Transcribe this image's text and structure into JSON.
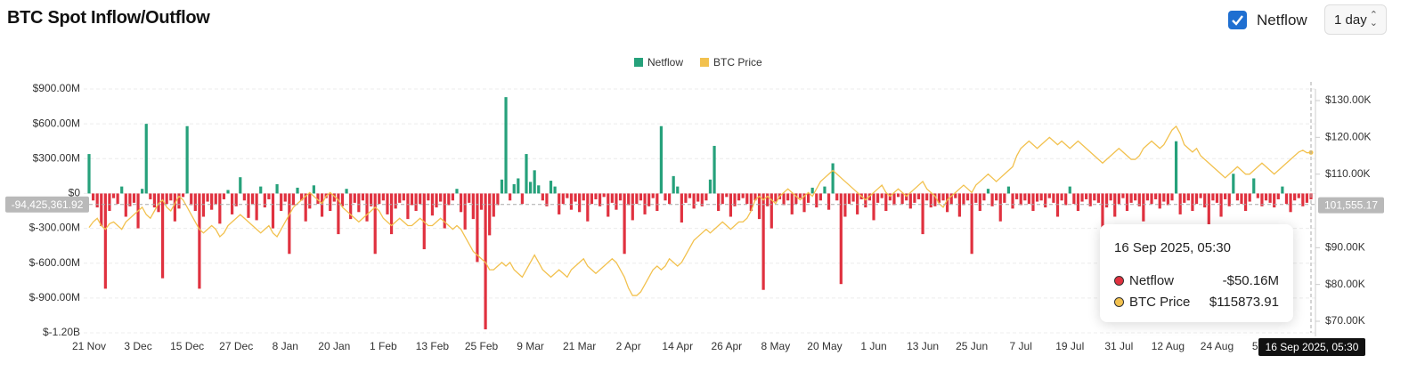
{
  "chart_data": {
    "type": "bar-line",
    "title": "BTC Spot Inflow/Outflow",
    "categories": [
      "21 Nov",
      null,
      null,
      null,
      null,
      null,
      null,
      null,
      null,
      null,
      null,
      null,
      "3 Dec",
      null,
      null,
      null,
      null,
      null,
      null,
      null,
      null,
      null,
      null,
      null,
      "15 Dec",
      null,
      null,
      null,
      null,
      null,
      null,
      null,
      null,
      null,
      null,
      null,
      "27 Dec",
      null,
      null,
      null,
      null,
      null,
      null,
      null,
      null,
      null,
      null,
      null,
      "8 Jan",
      null,
      null,
      null,
      null,
      null,
      null,
      null,
      null,
      null,
      null,
      null,
      "20 Jan",
      null,
      null,
      null,
      null,
      null,
      null,
      null,
      null,
      null,
      null,
      null,
      "1 Feb",
      null,
      null,
      null,
      null,
      null,
      null,
      null,
      null,
      null,
      null,
      null,
      "13 Feb",
      null,
      null,
      null,
      null,
      null,
      null,
      null,
      null,
      null,
      null,
      null,
      "25 Feb",
      null,
      null,
      null,
      null,
      null,
      null,
      null,
      null,
      null,
      null,
      null,
      "9 Mar",
      null,
      null,
      null,
      null,
      null,
      null,
      null,
      null,
      null,
      null,
      null,
      "21 Mar",
      null,
      null,
      null,
      null,
      null,
      null,
      null,
      null,
      null,
      null,
      null,
      "2 Apr",
      null,
      null,
      null,
      null,
      null,
      null,
      null,
      null,
      null,
      null,
      null,
      "14 Apr",
      null,
      null,
      null,
      null,
      null,
      null,
      null,
      null,
      null,
      null,
      null,
      "26 Apr",
      null,
      null,
      null,
      null,
      null,
      null,
      null,
      null,
      null,
      null,
      null,
      "8 May",
      null,
      null,
      null,
      null,
      null,
      null,
      null,
      null,
      null,
      null,
      null,
      "20 May",
      null,
      null,
      null,
      null,
      null,
      null,
      null,
      null,
      null,
      null,
      null,
      "1 Jun",
      null,
      null,
      null,
      null,
      null,
      null,
      null,
      null,
      null,
      null,
      null,
      "13 Jun",
      null,
      null,
      null,
      null,
      null,
      null,
      null,
      null,
      null,
      null,
      null,
      "25 Jun",
      null,
      null,
      null,
      null,
      null,
      null,
      null,
      null,
      null,
      null,
      null,
      "7 Jul",
      null,
      null,
      null,
      null,
      null,
      null,
      null,
      null,
      null,
      null,
      null,
      "19 Jul",
      null,
      null,
      null,
      null,
      null,
      null,
      null,
      null,
      null,
      null,
      null,
      "31 Jul",
      null,
      null,
      null,
      null,
      null,
      null,
      null,
      null,
      null,
      null,
      null,
      "12 Aug",
      null,
      null,
      null,
      null,
      null,
      null,
      null,
      null,
      null,
      null,
      null,
      "24 Aug",
      null,
      null,
      null,
      null,
      null,
      null,
      null,
      null,
      null,
      null,
      null,
      "5 Sep",
      null,
      null,
      null,
      null,
      null,
      null,
      null,
      null,
      null,
      null,
      null
    ],
    "series": [
      {
        "name": "Netflow",
        "color": "#26a17b",
        "negative_color": "#e0313f",
        "values": [
          340,
          -60,
          -120,
          -280,
          -820,
          -150,
          -40,
          -90,
          60,
          -200,
          -110,
          -80,
          -300,
          40,
          600,
          -50,
          -120,
          -160,
          -730,
          -90,
          -60,
          -240,
          -130,
          -30,
          580,
          -100,
          -150,
          -820,
          -200,
          -70,
          -140,
          -90,
          -260,
          -50,
          30,
          -180,
          -110,
          140,
          -60,
          -210,
          -90,
          -230,
          60,
          -120,
          -50,
          -300,
          80,
          -150,
          -70,
          -520,
          -100,
          50,
          -60,
          -240,
          -130,
          70,
          -90,
          -200,
          -40,
          -150,
          -70,
          -350,
          -110,
          40,
          -220,
          -80,
          -160,
          -60,
          -240,
          -110,
          -520,
          -90,
          -60,
          -180,
          -350,
          -130,
          -80,
          -60,
          -220,
          -100,
          -150,
          -90,
          -480,
          -60,
          -190,
          -120,
          -70,
          -300,
          -100,
          -60,
          40,
          -160,
          -310,
          -80,
          -220,
          -590,
          -140,
          -1170,
          -360,
          -200,
          -100,
          120,
          830,
          -60,
          80,
          130,
          -90,
          340,
          100,
          200,
          70,
          -60,
          -110,
          110,
          60,
          -180,
          -90,
          -40,
          -140,
          -70,
          -160,
          -60,
          -240,
          -90,
          -50,
          -110,
          -30,
          -200,
          -80,
          -140,
          -60,
          -520,
          -100,
          -230,
          -90,
          -60,
          -180,
          -110,
          -40,
          -150,
          580,
          -60,
          -90,
          150,
          60,
          -250,
          -80,
          -40,
          -130,
          -70,
          -110,
          -60,
          120,
          410,
          -150,
          -90,
          -30,
          -200,
          -110,
          -60,
          -40,
          -90,
          -150,
          -60,
          -220,
          -830,
          -110,
          -300,
          -70,
          -50,
          -100,
          -60,
          -180,
          -90,
          -40,
          -160,
          -80,
          50,
          -120,
          -60,
          60,
          -140,
          260,
          -60,
          -780,
          -200,
          -90,
          -70,
          -180,
          -50,
          -120,
          -60,
          -230,
          -80,
          -40,
          -150,
          -60,
          -100,
          -30,
          -90,
          -60,
          -130,
          -80,
          -50,
          -350,
          -60,
          -120,
          -110,
          -80,
          -60,
          -160,
          -90,
          -40,
          -200,
          -100,
          -60,
          -520,
          -80,
          -150,
          -60,
          40,
          -110,
          -60,
          -240,
          -80,
          60,
          -130,
          -50,
          -100,
          -60,
          -90,
          -150,
          -70,
          -60,
          -120,
          -40,
          -80,
          -200,
          -60,
          -100,
          60,
          -90,
          -150,
          -70,
          -50,
          -110,
          -60,
          -80,
          -830,
          -120,
          -60,
          -200,
          -90,
          -40,
          -150,
          -80,
          -60,
          -110,
          -240,
          -60,
          -90,
          -50,
          -130,
          -70,
          -100,
          -60,
          450,
          -180,
          -80,
          -60,
          -150,
          -90,
          -40,
          -120,
          -300,
          -60,
          -80,
          -200,
          -50,
          -110,
          170,
          -60,
          -90,
          -150,
          -70,
          130,
          -40,
          -110,
          -60,
          -80,
          -120,
          -50,
          60,
          -90,
          -160,
          -60,
          -40,
          -110,
          -80,
          -50.16
        ]
      },
      {
        "name": "BTC Price",
        "color": "#f2c14e",
        "axis": "y2",
        "values": [
          95.5,
          97,
          98,
          96,
          95,
          96.5,
          97,
          96,
          95,
          97,
          98,
          99,
          100,
          101,
          99,
          98,
          100,
          102,
          103,
          101,
          100,
          102,
          104,
          103,
          101,
          99,
          97,
          95,
          94,
          95,
          96,
          95,
          93,
          94,
          96,
          97,
          98,
          99,
          98,
          97,
          96,
          95,
          94,
          95,
          96,
          94,
          93,
          95,
          97,
          99,
          101,
          102,
          103,
          104,
          105,
          104,
          103,
          102,
          104,
          105,
          104,
          103,
          101,
          100,
          99,
          98,
          97,
          98,
          99,
          100,
          101,
          100,
          98,
          97,
          96,
          97,
          98,
          97,
          96,
          96,
          97,
          98,
          97,
          96,
          96,
          97,
          98,
          97,
          96,
          95,
          96,
          95,
          93,
          91,
          89,
          88,
          87,
          86,
          84,
          84,
          85,
          86,
          85,
          86,
          84,
          83,
          82,
          84,
          86,
          88,
          86,
          84,
          83,
          82,
          83,
          84,
          83,
          82,
          84,
          85,
          86,
          87,
          85,
          84,
          83,
          84,
          85,
          86,
          87,
          86,
          84,
          82,
          79,
          77,
          77,
          78,
          80,
          82,
          84,
          85,
          84,
          85,
          87,
          86,
          85,
          86,
          88,
          90,
          92,
          93,
          94,
          95,
          94,
          95,
          96,
          97,
          96,
          95,
          96,
          97,
          97,
          98,
          100,
          103,
          104,
          103,
          104,
          103,
          102,
          104,
          105,
          106,
          105,
          104,
          103,
          104,
          105,
          104,
          106,
          108,
          109,
          110,
          111,
          110,
          109,
          108,
          107,
          106,
          105,
          104,
          103,
          104,
          105,
          106,
          107,
          105,
          104,
          105,
          106,
          105,
          104,
          105,
          106,
          107,
          108,
          106,
          105,
          104,
          102,
          101,
          103,
          104,
          105,
          106,
          107,
          106,
          105,
          107,
          108,
          109,
          110,
          109,
          108,
          109,
          110,
          111,
          112,
          115,
          117,
          118,
          119,
          118,
          117,
          118,
          119,
          120,
          119,
          118,
          119,
          118,
          117,
          118,
          119,
          118,
          117,
          116,
          115,
          114,
          113,
          114,
          115,
          116,
          117,
          116,
          115,
          114,
          114,
          115,
          117,
          118,
          119,
          118,
          117,
          118,
          120,
          122,
          123,
          121,
          118,
          117,
          116,
          117,
          115,
          114,
          113,
          112,
          111,
          110,
          109,
          110,
          111,
          112,
          111,
          110,
          110,
          111,
          112,
          113,
          112,
          111,
          110,
          111,
          112,
          113,
          114,
          115,
          116,
          116.5,
          115.8,
          115.87391
        ]
      }
    ],
    "ylim": [
      -1200,
      900
    ],
    "yticks": [
      {
        "value": 900,
        "label": "$900.00M"
      },
      {
        "value": 600,
        "label": "$600.00M"
      },
      {
        "value": 300,
        "label": "$300.00M"
      },
      {
        "value": 0,
        "label": "$0"
      },
      {
        "value": -300,
        "label": "$-300.00M"
      },
      {
        "value": -600,
        "label": "$-600.00M"
      },
      {
        "value": -900,
        "label": "$-900.00M"
      },
      {
        "value": -1200,
        "label": "$-1.20B"
      }
    ],
    "y2lim": [
      66.85,
      133.15
    ],
    "y2ticks": [
      {
        "value": 70,
        "label": "$70.00K"
      },
      {
        "value": 80,
        "label": "$80.00K"
      },
      {
        "value": 90,
        "label": "$90.00K"
      },
      {
        "value": 110,
        "label": "$110.00K"
      },
      {
        "value": 120,
        "label": "$120.00K"
      },
      {
        "value": 130,
        "label": "$130.00K"
      }
    ],
    "grid": true,
    "legend": "top",
    "crosshair": {
      "y": {
        "value": -94.42536192,
        "label": "-94,425,361.92"
      },
      "y2": {
        "value": 101.55517,
        "label": "101,555.17"
      }
    },
    "tooltip": {
      "title": "16 Sep 2025, 05:30",
      "labels": [
        "-$50.16M",
        "$115873.91"
      ]
    }
  },
  "controls": {
    "toggle_label": "Netflow",
    "interval": "1 day"
  }
}
